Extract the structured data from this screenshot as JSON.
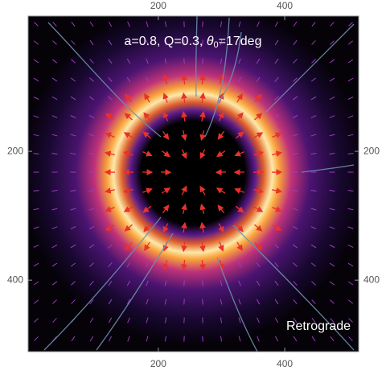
{
  "chart_data": {
    "type": "density",
    "title_parts": [
      "a=0.8, Q=0.3, ",
      "θ",
      "0",
      "=17deg"
    ],
    "annotation": "Retrograde",
    "xlim": [
      -6,
      517
    ],
    "ylim": [
      -10,
      511
    ],
    "xticks": [
      200,
      400
    ],
    "yticks": [
      200,
      400
    ]
  }
}
